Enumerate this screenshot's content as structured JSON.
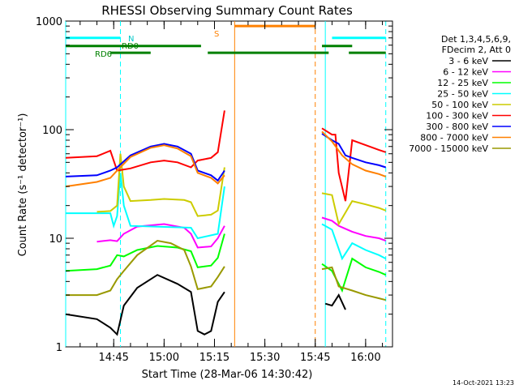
{
  "chart_data": {
    "type": "line",
    "title": "RHESSI Observing Summary Count Rates",
    "xlabel": "Start Time (28-Mar-06 14:30:42)",
    "ylabel": "Count Rate (s⁻¹ detector⁻¹)",
    "yscale": "log",
    "ylim": [
      1,
      1000
    ],
    "xlim": [
      "14:30:42",
      "16:08:00"
    ],
    "x_ticks": [
      "14:45",
      "15:00",
      "15:15",
      "15:30",
      "15:45",
      "16:00"
    ],
    "y_ticks": [
      "1",
      "10",
      "100",
      "1000"
    ],
    "grid": false,
    "legend_position": "right",
    "legend_header": [
      "Det 1,3,4,5,6,9,",
      "FDecim 2, Att 0"
    ],
    "footer": "14-Oct-2021 13:23",
    "series": [
      {
        "name": "3 - 6 keV",
        "color": "#000000",
        "points": [
          [
            "14:30:42",
            2.0
          ],
          [
            "14:40",
            1.8
          ],
          [
            "14:44",
            1.5
          ],
          [
            "14:46",
            1.3
          ],
          [
            "14:48",
            2.4
          ],
          [
            "14:52",
            3.5
          ],
          [
            "14:58",
            4.6
          ],
          [
            "15:04",
            3.8
          ],
          [
            "15:08",
            3.2
          ],
          [
            "15:10",
            1.4
          ],
          [
            "15:12",
            1.3
          ],
          [
            "15:14",
            1.4
          ],
          [
            "15:16",
            2.6
          ],
          [
            "15:18",
            3.2
          ]
        ]
      },
      {
        "name": "6 - 12 keV",
        "color": "#ff00ff",
        "points": [
          [
            "14:40",
            9.3
          ],
          [
            "14:44",
            9.6
          ],
          [
            "14:46",
            9.4
          ],
          [
            "14:48",
            11.0
          ],
          [
            "14:52",
            12.8
          ],
          [
            "15:00",
            13.5
          ],
          [
            "15:06",
            12.5
          ],
          [
            "15:08",
            11.0
          ],
          [
            "15:10",
            8.2
          ],
          [
            "15:14",
            8.4
          ],
          [
            "15:16",
            10.0
          ],
          [
            "15:18",
            13.0
          ]
        ]
      },
      {
        "name": "12 - 25 keV",
        "color": "#00ff00",
        "points": [
          [
            "14:30:42",
            5.0
          ],
          [
            "14:40",
            5.2
          ],
          [
            "14:44",
            5.6
          ],
          [
            "14:46",
            7.0
          ],
          [
            "14:48",
            6.8
          ],
          [
            "14:52",
            7.8
          ],
          [
            "14:58",
            8.5
          ],
          [
            "15:04",
            8.2
          ],
          [
            "15:08",
            7.6
          ],
          [
            "15:10",
            5.4
          ],
          [
            "15:14",
            5.6
          ],
          [
            "15:16",
            6.6
          ],
          [
            "15:18",
            11.0
          ]
        ]
      },
      {
        "name": "25 - 50 keV",
        "color": "#00ffff",
        "points": [
          [
            "14:30:42",
            17.0
          ],
          [
            "14:44",
            17.0
          ],
          [
            "14:45",
            13.0
          ],
          [
            "14:46",
            16.0
          ],
          [
            "14:47",
            40.0
          ],
          [
            "14:48",
            20.0
          ],
          [
            "14:50",
            13.0
          ],
          [
            "15:08",
            12.5
          ],
          [
            "15:10",
            10.0
          ],
          [
            "15:16",
            11.0
          ],
          [
            "15:18",
            30.0
          ]
        ]
      },
      {
        "name": "50 - 100 keV",
        "color": "#cccc00",
        "points": [
          [
            "14:40",
            17.5
          ],
          [
            "14:44",
            17.8
          ],
          [
            "14:46",
            20.0
          ],
          [
            "14:47",
            60.0
          ],
          [
            "14:48",
            30.0
          ],
          [
            "14:50",
            22.0
          ],
          [
            "14:56",
            22.5
          ],
          [
            "15:00",
            23.0
          ],
          [
            "15:06",
            22.5
          ],
          [
            "15:08",
            21.5
          ],
          [
            "15:10",
            16.0
          ],
          [
            "15:14",
            16.5
          ],
          [
            "15:16",
            18.0
          ],
          [
            "15:18",
            45.0
          ]
        ]
      },
      {
        "name": "100 - 300 keV",
        "color": "#ff0000",
        "points": [
          [
            "14:30:42",
            55.0
          ],
          [
            "14:40",
            57.0
          ],
          [
            "14:44",
            64.0
          ],
          [
            "14:46",
            42.0
          ],
          [
            "14:50",
            44.0
          ],
          [
            "14:56",
            50.0
          ],
          [
            "15:00",
            52.0
          ],
          [
            "15:04",
            50.0
          ],
          [
            "15:08",
            45.0
          ],
          [
            "15:10",
            52.0
          ],
          [
            "15:14",
            55.0
          ],
          [
            "15:16",
            62.0
          ],
          [
            "15:18",
            150.0
          ]
        ]
      },
      {
        "name": "300 - 800 keV",
        "color": "#0000ff",
        "points": [
          [
            "14:30:42",
            37.0
          ],
          [
            "14:40",
            38.0
          ],
          [
            "14:44",
            42.0
          ],
          [
            "14:46",
            45.0
          ],
          [
            "14:50",
            58.0
          ],
          [
            "14:56",
            70.0
          ],
          [
            "15:00",
            74.0
          ],
          [
            "15:04",
            70.0
          ],
          [
            "15:08",
            60.0
          ],
          [
            "15:10",
            42.0
          ],
          [
            "15:14",
            38.0
          ],
          [
            "15:16",
            34.0
          ],
          [
            "15:18",
            42.0
          ]
        ]
      },
      {
        "name": "800 - 7000 keV",
        "color": "#ff8000",
        "points": [
          [
            "14:30:42",
            30.0
          ],
          [
            "14:40",
            33.0
          ],
          [
            "14:44",
            36.0
          ],
          [
            "14:46",
            42.0
          ],
          [
            "14:50",
            56.0
          ],
          [
            "14:56",
            68.0
          ],
          [
            "15:00",
            72.0
          ],
          [
            "15:04",
            67.0
          ],
          [
            "15:08",
            57.0
          ],
          [
            "15:10",
            40.0
          ],
          [
            "15:14",
            36.0
          ],
          [
            "15:16",
            32.0
          ],
          [
            "15:18",
            38.0
          ]
        ]
      },
      {
        "name": "7000 - 15000 keV",
        "color": "#999900",
        "points": [
          [
            "14:30:42",
            3.0
          ],
          [
            "14:40",
            3.0
          ],
          [
            "14:44",
            3.3
          ],
          [
            "14:46",
            4.2
          ],
          [
            "14:48",
            5.0
          ],
          [
            "14:52",
            7.0
          ],
          [
            "14:58",
            9.5
          ],
          [
            "15:02",
            9.0
          ],
          [
            "15:06",
            7.8
          ],
          [
            "15:08",
            5.5
          ],
          [
            "15:10",
            3.4
          ],
          [
            "15:14",
            3.6
          ],
          [
            "15:16",
            4.4
          ],
          [
            "15:18",
            5.5
          ]
        ]
      }
    ],
    "series_after_gap": [
      {
        "name": "3 - 6 keV",
        "points": [
          [
            "15:48",
            2.5
          ],
          [
            "15:50",
            2.4
          ],
          [
            "15:52",
            3.0
          ],
          [
            "15:54",
            2.2
          ]
        ]
      },
      {
        "name": "6 - 12 keV",
        "points": [
          [
            "15:47",
            15.5
          ],
          [
            "15:50",
            14.5
          ],
          [
            "15:52",
            13.0
          ],
          [
            "15:56",
            11.5
          ],
          [
            "16:00",
            10.5
          ],
          [
            "16:04",
            10.0
          ],
          [
            "16:06",
            9.5
          ]
        ]
      },
      {
        "name": "12 - 25 keV",
        "points": [
          [
            "15:47",
            5.8
          ],
          [
            "15:50",
            5.0
          ],
          [
            "15:53",
            3.3
          ],
          [
            "15:56",
            6.5
          ],
          [
            "16:00",
            5.4
          ],
          [
            "16:04",
            4.9
          ],
          [
            "16:06",
            4.6
          ]
        ]
      },
      {
        "name": "25 - 50 keV",
        "points": [
          [
            "15:47",
            13.5
          ],
          [
            "15:50",
            12.0
          ],
          [
            "15:53",
            6.5
          ],
          [
            "15:56",
            9.0
          ],
          [
            "16:00",
            7.8
          ],
          [
            "16:04",
            7.0
          ],
          [
            "16:06",
            6.5
          ]
        ]
      },
      {
        "name": "50 - 100 keV",
        "points": [
          [
            "15:47",
            26.0
          ],
          [
            "15:50",
            25.0
          ],
          [
            "15:52",
            13.5
          ],
          [
            "15:56",
            22.0
          ],
          [
            "16:00",
            20.5
          ],
          [
            "16:04",
            19.0
          ],
          [
            "16:06",
            18.0
          ]
        ]
      },
      {
        "name": "100 - 300 keV",
        "points": [
          [
            "15:47",
            103.0
          ],
          [
            "15:50",
            90.0
          ],
          [
            "15:51",
            90.0
          ],
          [
            "15:52",
            40.0
          ],
          [
            "15:54",
            22.0
          ],
          [
            "15:56",
            80.0
          ],
          [
            "16:00",
            72.0
          ],
          [
            "16:04",
            65.0
          ],
          [
            "16:06",
            62.0
          ]
        ]
      },
      {
        "name": "300 - 800 keV",
        "points": [
          [
            "15:47",
            92.0
          ],
          [
            "15:50",
            80.0
          ],
          [
            "15:52",
            74.0
          ],
          [
            "15:54",
            58.0
          ],
          [
            "15:56",
            55.0
          ],
          [
            "16:00",
            50.0
          ],
          [
            "16:04",
            47.0
          ],
          [
            "16:06",
            45.0
          ]
        ]
      },
      {
        "name": "800 - 7000 keV",
        "points": [
          [
            "15:47",
            96.0
          ],
          [
            "15:50",
            78.0
          ],
          [
            "15:53",
            58.0
          ],
          [
            "15:56",
            48.0
          ],
          [
            "16:00",
            42.0
          ],
          [
            "16:04",
            39.0
          ],
          [
            "16:06",
            37.0
          ]
        ]
      },
      {
        "name": "7000 - 15000 keV",
        "points": [
          [
            "15:47",
            5.2
          ],
          [
            "15:50",
            5.4
          ],
          [
            "15:52",
            3.6
          ],
          [
            "15:56",
            3.3
          ],
          [
            "16:00",
            3.0
          ],
          [
            "16:04",
            2.8
          ],
          [
            "16:06",
            2.7
          ]
        ]
      }
    ],
    "flag_bars": [
      {
        "label": "",
        "color": "#00ffff",
        "level": 700,
        "segments": [
          [
            "14:30:42",
            "14:47"
          ],
          [
            "15:50",
            "16:06"
          ]
        ]
      },
      {
        "label": "N",
        "color": "#00ffff",
        "level": 700,
        "segments": []
      },
      {
        "label": "RD0",
        "color": "#008000",
        "level": 590,
        "segments": [
          [
            "14:30:42",
            "15:11"
          ],
          [
            "15:47",
            "15:56"
          ]
        ]
      },
      {
        "label": "RD6",
        "color": "#008000",
        "level": 510,
        "segments": [
          [
            "14:44",
            "14:56"
          ],
          [
            "15:13",
            "15:49"
          ],
          [
            "15:55",
            "16:06"
          ]
        ]
      },
      {
        "label": "S",
        "color": "#ff8000",
        "level": 900,
        "segments": [
          [
            "15:21",
            "15:45"
          ]
        ]
      }
    ],
    "vlines": [
      {
        "x": "14:30:42",
        "color": "#00ffff",
        "style": "solid"
      },
      {
        "x": "14:47",
        "color": "#00ffff",
        "style": "dashed"
      },
      {
        "x": "15:21",
        "color": "#ff8000",
        "style": "solid"
      },
      {
        "x": "15:45",
        "color": "#ff8000",
        "style": "dashed"
      },
      {
        "x": "15:48",
        "color": "#00ffff",
        "style": "solid"
      },
      {
        "x": "16:06",
        "color": "#00ffff",
        "style": "dashed"
      }
    ]
  }
}
